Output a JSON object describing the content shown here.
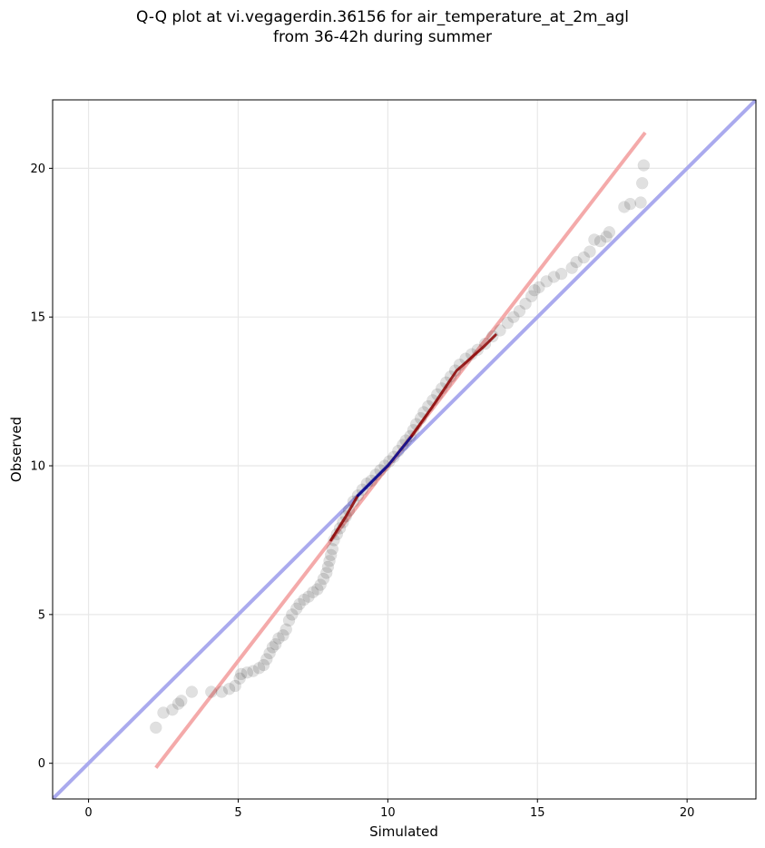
{
  "chart_data": {
    "type": "scatter",
    "title_line1": "Q-Q plot at vi.vegagerdin.36156 for air_temperature_at_2m_agl",
    "title_line2": "from 36-42h during summer",
    "xlabel": "Simulated",
    "ylabel": "Observed",
    "xlim": [
      -1.2,
      22.3
    ],
    "ylim": [
      -1.2,
      22.3
    ],
    "xticks": [
      0,
      5,
      10,
      15,
      20
    ],
    "yticks": [
      0,
      5,
      10,
      15,
      20
    ],
    "grid": true,
    "reference_lines": [
      {
        "name": "1:1 line",
        "color": "#aaaaee",
        "points": [
          [
            -1.2,
            -1.2
          ],
          [
            22.3,
            22.3
          ]
        ]
      },
      {
        "name": "fit line",
        "color": "#f4aaaa",
        "points": [
          [
            2.25,
            -0.15
          ],
          [
            18.6,
            21.2
          ]
        ]
      }
    ],
    "highlight_segments": [
      {
        "color": "#8b0000",
        "points": [
          [
            8.1,
            7.5
          ],
          [
            8.6,
            8.3
          ],
          [
            9.0,
            9.0
          ]
        ]
      },
      {
        "color": "#00008b",
        "points": [
          [
            9.0,
            9.0
          ],
          [
            9.5,
            9.5
          ],
          [
            10.0,
            10.0
          ],
          [
            10.8,
            11.0
          ]
        ]
      },
      {
        "color": "#8b0000",
        "points": [
          [
            10.8,
            11.0
          ],
          [
            11.5,
            12.0
          ],
          [
            12.3,
            13.2
          ],
          [
            13.2,
            14.0
          ],
          [
            13.6,
            14.4
          ]
        ]
      }
    ],
    "point_color": "#000000",
    "points": [
      [
        2.25,
        1.2
      ],
      [
        2.5,
        1.7
      ],
      [
        2.8,
        1.8
      ],
      [
        3.0,
        2.0
      ],
      [
        3.1,
        2.1
      ],
      [
        3.45,
        2.4
      ],
      [
        4.1,
        2.4
      ],
      [
        4.45,
        2.4
      ],
      [
        4.7,
        2.5
      ],
      [
        4.9,
        2.6
      ],
      [
        5.05,
        2.85
      ],
      [
        5.1,
        3.0
      ],
      [
        5.3,
        3.05
      ],
      [
        5.5,
        3.1
      ],
      [
        5.7,
        3.2
      ],
      [
        5.85,
        3.3
      ],
      [
        5.95,
        3.5
      ],
      [
        6.05,
        3.7
      ],
      [
        6.15,
        3.9
      ],
      [
        6.25,
        4.0
      ],
      [
        6.35,
        4.2
      ],
      [
        6.5,
        4.3
      ],
      [
        6.6,
        4.5
      ],
      [
        6.7,
        4.8
      ],
      [
        6.8,
        5.0
      ],
      [
        6.95,
        5.2
      ],
      [
        7.05,
        5.35
      ],
      [
        7.2,
        5.5
      ],
      [
        7.35,
        5.6
      ],
      [
        7.5,
        5.75
      ],
      [
        7.65,
        5.85
      ],
      [
        7.75,
        6.0
      ],
      [
        7.85,
        6.2
      ],
      [
        7.95,
        6.4
      ],
      [
        8.0,
        6.6
      ],
      [
        8.05,
        6.8
      ],
      [
        8.1,
        7.0
      ],
      [
        8.15,
        7.2
      ],
      [
        8.2,
        7.5
      ],
      [
        8.3,
        7.7
      ],
      [
        8.4,
        7.9
      ],
      [
        8.5,
        8.1
      ],
      [
        8.6,
        8.3
      ],
      [
        8.7,
        8.5
      ],
      [
        8.85,
        8.8
      ],
      [
        9.0,
        9.0
      ],
      [
        9.15,
        9.2
      ],
      [
        9.3,
        9.4
      ],
      [
        9.45,
        9.5
      ],
      [
        9.6,
        9.7
      ],
      [
        9.75,
        9.85
      ],
      [
        9.9,
        10.0
      ],
      [
        10.05,
        10.15
      ],
      [
        10.2,
        10.3
      ],
      [
        10.35,
        10.5
      ],
      [
        10.5,
        10.7
      ],
      [
        10.6,
        10.85
      ],
      [
        10.75,
        11.0
      ],
      [
        10.85,
        11.2
      ],
      [
        10.95,
        11.4
      ],
      [
        11.1,
        11.6
      ],
      [
        11.2,
        11.8
      ],
      [
        11.35,
        12.0
      ],
      [
        11.5,
        12.2
      ],
      [
        11.65,
        12.4
      ],
      [
        11.8,
        12.6
      ],
      [
        11.95,
        12.8
      ],
      [
        12.1,
        13.0
      ],
      [
        12.25,
        13.2
      ],
      [
        12.4,
        13.4
      ],
      [
        12.6,
        13.6
      ],
      [
        12.8,
        13.75
      ],
      [
        13.0,
        13.9
      ],
      [
        13.25,
        14.1
      ],
      [
        13.5,
        14.35
      ],
      [
        13.75,
        14.55
      ],
      [
        14.0,
        14.8
      ],
      [
        14.2,
        15.0
      ],
      [
        14.4,
        15.2
      ],
      [
        14.6,
        15.45
      ],
      [
        14.8,
        15.7
      ],
      [
        14.9,
        15.9
      ],
      [
        15.05,
        16.0
      ],
      [
        15.3,
        16.2
      ],
      [
        15.55,
        16.35
      ],
      [
        15.8,
        16.45
      ],
      [
        16.15,
        16.65
      ],
      [
        16.3,
        16.85
      ],
      [
        16.55,
        17.0
      ],
      [
        16.75,
        17.2
      ],
      [
        16.9,
        17.6
      ],
      [
        17.1,
        17.55
      ],
      [
        17.3,
        17.7
      ],
      [
        17.4,
        17.85
      ],
      [
        17.9,
        18.7
      ],
      [
        18.1,
        18.8
      ],
      [
        18.45,
        18.85
      ],
      [
        18.5,
        19.5
      ],
      [
        18.55,
        20.1
      ]
    ]
  }
}
